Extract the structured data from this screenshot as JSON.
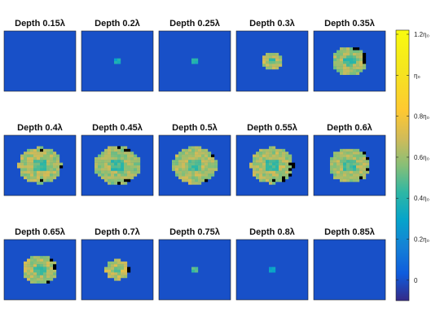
{
  "chart_data": {
    "type": "heatmap",
    "layout": {
      "rows": 3,
      "cols": 5
    },
    "grid": false,
    "colormap": "parula",
    "colorbar_placement": "right",
    "colorbar_range": [
      -0.1,
      1.22
    ],
    "background_value": 0.0,
    "missing_color": "#000000",
    "panels": [
      {
        "title": "Depth 0.15λ",
        "radius": 0,
        "level": 0
      },
      {
        "title": "Depth 0.2λ",
        "radius": 0.05,
        "level": 0.35
      },
      {
        "title": "Depth 0.25λ",
        "radius": 0.05,
        "level": 0.4
      },
      {
        "title": "Depth 0.3λ",
        "radius": 0.16,
        "level": 0.65
      },
      {
        "title": "Depth 0.35λ",
        "radius": 0.24,
        "level": 0.6
      },
      {
        "title": "Depth 0.4λ",
        "radius": 0.3,
        "level": 0.62
      },
      {
        "title": "Depth 0.45λ",
        "radius": 0.32,
        "level": 0.6
      },
      {
        "title": "Depth 0.5λ",
        "radius": 0.31,
        "level": 0.62
      },
      {
        "title": "Depth 0.55λ",
        "radius": 0.3,
        "level": 0.62
      },
      {
        "title": "Depth 0.6λ",
        "radius": 0.29,
        "level": 0.62
      },
      {
        "title": "Depth 0.65λ",
        "radius": 0.25,
        "level": 0.62
      },
      {
        "title": "Depth 0.7λ",
        "radius": 0.17,
        "level": 0.65
      },
      {
        "title": "Depth 0.75λ",
        "radius": 0.06,
        "level": 0.45
      },
      {
        "title": "Depth 0.8λ",
        "radius": 0.05,
        "level": 0.3
      },
      {
        "title": "Depth 0.85λ",
        "radius": 0,
        "level": 0
      }
    ],
    "colorbar_ticks": [
      {
        "value": 0,
        "label": "0"
      },
      {
        "value": 0.2,
        "label": "0.2η₀"
      },
      {
        "value": 0.4,
        "label": "0.4η₀"
      },
      {
        "value": 0.6,
        "label": "0.6η₀"
      },
      {
        "value": 0.8,
        "label": "0.8η₀"
      },
      {
        "value": 1.0,
        "label": "η₀"
      },
      {
        "value": 1.2,
        "label": "1.2η₀"
      }
    ]
  }
}
